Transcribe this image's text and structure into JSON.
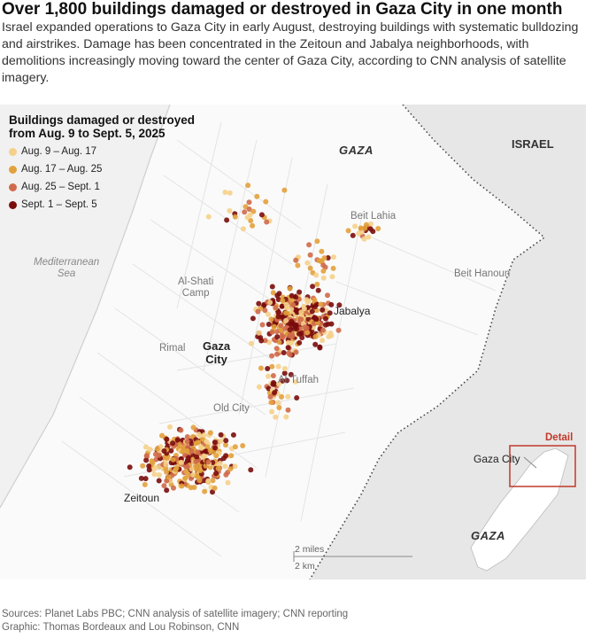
{
  "headline": "Over 1,800 buildings damaged or destroyed in Gaza City in one month",
  "dek": "Israel expanded operations to Gaza City in early August, destroying buildings with systematic bulldozing and airstrikes. Damage has been concentrated in the Zeitoun and Jabalya neighborhoods, with demolitions increasingly moving toward the center of Gaza City, according to CNN analysis of satellite imagery.",
  "legend": {
    "title_line1": "Buildings damaged or destroyed",
    "title_line2": "from Aug. 9 to Sept. 5, 2025",
    "items": [
      {
        "label": "Aug. 9 – Aug. 17",
        "color": "#f5d08a"
      },
      {
        "label": "Aug. 17 – Aug. 25",
        "color": "#e2a13c"
      },
      {
        "label": "Aug. 25 – Sept. 1",
        "color": "#cf6a4a"
      },
      {
        "label": "Sept. 1 – Sept. 5",
        "color": "#7a0c0c"
      }
    ]
  },
  "labels": {
    "gaza_region": "GAZA",
    "israel": "ISRAEL",
    "sea_line1": "Mediterranean",
    "sea_line2": "Sea",
    "beit_lahia": "Beit Lahia",
    "beit_hanoun": "Beit Hanoun",
    "al_shati_line1": "Al-Shati",
    "al_shati_line2": "Camp",
    "jabalya": "Jabalya",
    "rimal": "Rimal",
    "gaza_city_line1": "Gaza",
    "gaza_city_line2": "City",
    "al_tuffah": "Al-Tuffah",
    "old_city": "Old City",
    "zeitoun": "Zeitoun"
  },
  "inset": {
    "detail": "Detail",
    "gaza_city": "Gaza City",
    "gaza": "GAZA"
  },
  "scale": {
    "miles": "2 miles",
    "km": "2 km"
  },
  "footer": {
    "sources": "Sources: Planet Labs PBC; CNN analysis of satellite imagery; CNN reporting",
    "graphic": "Graphic: Thomas Bordeaux and Lou Robinson, CNN"
  }
}
